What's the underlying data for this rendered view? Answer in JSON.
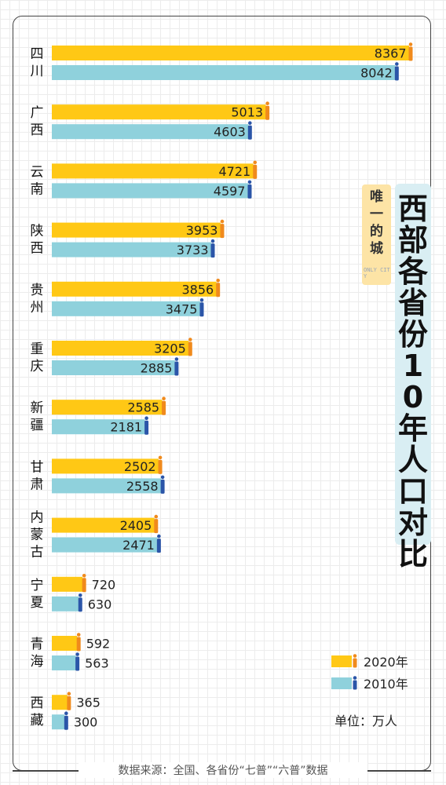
{
  "chart_data": {
    "type": "bar",
    "orientation": "horizontal",
    "title": "西部各省份10年人口对比",
    "categories": [
      "四川",
      "广西",
      "云南",
      "陕西",
      "贵州",
      "重庆",
      "新疆",
      "甘肃",
      "内蒙古",
      "宁夏",
      "青海",
      "西藏"
    ],
    "series": [
      {
        "name": "2020年",
        "color": "#ffc815",
        "values": [
          8367,
          5013,
          4721,
          3953,
          3856,
          3205,
          2585,
          2502,
          2405,
          720,
          592,
          365
        ]
      },
      {
        "name": "2010年",
        "color": "#8fd1dc",
        "values": [
          8042,
          4603,
          4597,
          3733,
          3475,
          2885,
          2181,
          2558,
          2471,
          630,
          563,
          300
        ]
      }
    ],
    "unit": "单位：万人",
    "legend_position": "bottom-right",
    "grid": true
  },
  "badge": {
    "text": "唯一的城",
    "sub": "ONLY CITY"
  },
  "source": "数据来源：全国、各省份“七普”“六普”数据",
  "colors": {
    "figure_2020": "#f08a1c",
    "figure_2010": "#2b55a8"
  }
}
